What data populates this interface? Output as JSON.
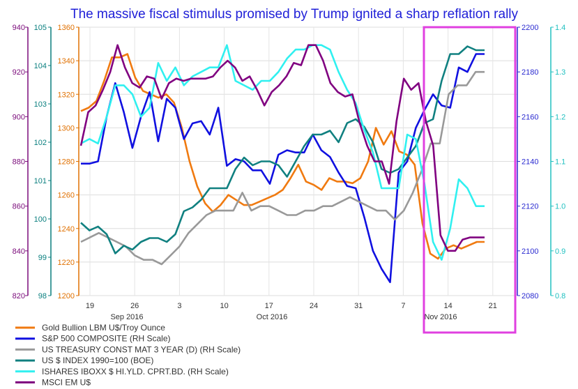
{
  "chart_data": {
    "type": "line",
    "title": "The massive fiscal stimulus promised by Trump ignited a sharp reflation rally",
    "x_ticks": [
      "19",
      "26",
      "3",
      "10",
      "17",
      "24",
      "31",
      "7",
      "14",
      "21"
    ],
    "month_labels": [
      "Sep 2016",
      "Oct 2016",
      "Nov 2016"
    ],
    "axes": {
      "msci": {
        "ticks": [
          "940",
          "920",
          "900",
          "880",
          "860",
          "840",
          "820"
        ],
        "range": [
          820,
          940
        ],
        "color": "#7a0a7a"
      },
      "usd": {
        "ticks": [
          "105",
          "104",
          "103",
          "102",
          "101",
          "100",
          "99",
          "98"
        ],
        "range": [
          98,
          105
        ],
        "color": "#0a7f7f"
      },
      "gold": {
        "ticks": [
          "1360",
          "1340",
          "1320",
          "1300",
          "1280",
          "1260",
          "1240",
          "1220",
          "1200"
        ],
        "range": [
          1200,
          1360
        ],
        "color": "#e07000"
      },
      "sp500": {
        "ticks": [
          "2200",
          "2180",
          "2160",
          "2140",
          "2120",
          "2100",
          "2080"
        ],
        "range": [
          2080,
          2200
        ],
        "color": "#2a2ad0"
      },
      "bond": {
        "ticks": [
          "1.4",
          "1.3",
          "1.2",
          "1.1",
          "1.0",
          "0.9",
          "0.8"
        ],
        "range": [
          0.8,
          1.4
        ],
        "color": "#20c0c0"
      }
    },
    "series": [
      {
        "name": "Gold Bullion LBM U$/Troy Ounce",
        "color": "#f07a10",
        "axis": "gold",
        "values": [
          1310,
          1312,
          1316,
          1328,
          1342,
          1342,
          1344,
          1330,
          1322,
          1320,
          1318,
          1320,
          1315,
          1300,
          1280,
          1265,
          1255,
          1250,
          1254,
          1260,
          1257,
          1254,
          1254,
          1256,
          1258,
          1260,
          1263,
          1270,
          1278,
          1268,
          1266,
          1263,
          1270,
          1268,
          1268,
          1267,
          1270,
          1280,
          1300,
          1290,
          1298,
          1286,
          1284,
          1278,
          1243,
          1225,
          1222,
          1228,
          1230,
          1228,
          1230,
          1232,
          1232
        ]
      },
      {
        "name": "S&P 500 COMPOSITE (RH Scale)",
        "color": "#1010e0",
        "axis": "sp500",
        "values": [
          2139,
          2139,
          2140,
          2160,
          2175,
          2162,
          2146,
          2160,
          2171,
          2149,
          2168,
          2164,
          2150,
          2157,
          2158,
          2152,
          2164,
          2138,
          2141,
          2140,
          2136,
          2136,
          2130,
          2143,
          2145,
          2144,
          2144,
          2152,
          2145,
          2142,
          2135,
          2129,
          2128,
          2115,
          2100,
          2092,
          2086,
          2135,
          2140,
          2155,
          2163,
          2170,
          2165,
          2164,
          2182,
          2180,
          2188,
          2188
        ]
      },
      {
        "name": "US TREASURY CONST MAT 3 YEAR (D) (RH Scale)",
        "color": "#999999",
        "axis": "bond",
        "values": [
          0.92,
          0.93,
          0.94,
          0.93,
          0.92,
          0.91,
          0.89,
          0.88,
          0.88,
          0.87,
          0.89,
          0.91,
          0.94,
          0.96,
          0.98,
          0.99,
          0.99,
          0.99,
          1.03,
          0.99,
          1.0,
          1.0,
          0.99,
          0.98,
          0.98,
          0.99,
          0.99,
          1.0,
          1.0,
          1.01,
          1.02,
          1.01,
          1.0,
          0.99,
          0.99,
          0.97,
          0.99,
          1.03,
          1.08,
          1.14,
          1.14,
          1.25,
          1.27,
          1.27,
          1.3,
          1.3
        ]
      },
      {
        "name": "US $ INDEX 1990=100 (BOE)",
        "color": "#108080",
        "axis": "usd",
        "values": [
          99.9,
          99.7,
          99.8,
          99.6,
          99.1,
          99.3,
          99.2,
          99.4,
          99.5,
          99.5,
          99.4,
          99.6,
          100.2,
          100.3,
          100.5,
          100.8,
          100.8,
          100.8,
          101.3,
          101.6,
          101.4,
          101.5,
          101.5,
          101.4,
          101.1,
          101.5,
          101.9,
          102.2,
          102.2,
          102.3,
          102.0,
          102.5,
          102.6,
          102.4,
          102.0,
          101.3,
          101.2,
          101.3,
          101.6,
          101.9,
          102.5,
          102.6,
          103.6,
          104.3,
          104.3,
          104.5,
          104.4,
          104.4
        ]
      },
      {
        "name": "ISHARES IBOXX $ HI.YLD. CPRT.BD. (RH Scale)",
        "color": "#30f0f0",
        "axis": "bond",
        "values": [
          1.14,
          1.15,
          1.14,
          1.2,
          1.27,
          1.27,
          1.25,
          1.2,
          1.22,
          1.32,
          1.28,
          1.31,
          1.27,
          1.29,
          1.3,
          1.31,
          1.31,
          1.36,
          1.28,
          1.27,
          1.26,
          1.28,
          1.28,
          1.3,
          1.33,
          1.35,
          1.35,
          1.36,
          1.36,
          1.35,
          1.3,
          1.26,
          1.23,
          1.17,
          1.12,
          1.04,
          1.04,
          1.04,
          1.16,
          1.15,
          1.05,
          0.92,
          0.88,
          0.95,
          1.06,
          1.04,
          1.0,
          1.0
        ]
      },
      {
        "name": "MSCI EM U$",
        "color": "#800080",
        "axis": "msci",
        "values": [
          887,
          902,
          905,
          912,
          920,
          932,
          922,
          915,
          913,
          918,
          917,
          908,
          915,
          917,
          916,
          917,
          917,
          917,
          918,
          922,
          925,
          922,
          916,
          918,
          912,
          905,
          911,
          914,
          918,
          924,
          923,
          932,
          932,
          925,
          915,
          911,
          909,
          910,
          897,
          887,
          880,
          880,
          870,
          898,
          917,
          912,
          915,
          898,
          887,
          847,
          840,
          840,
          845,
          846,
          846,
          846
        ]
      }
    ],
    "grid": true,
    "legend": "bottom-left",
    "highlight_box": {
      "color": "#e040e0",
      "period": "Nov 2016 onward"
    }
  }
}
